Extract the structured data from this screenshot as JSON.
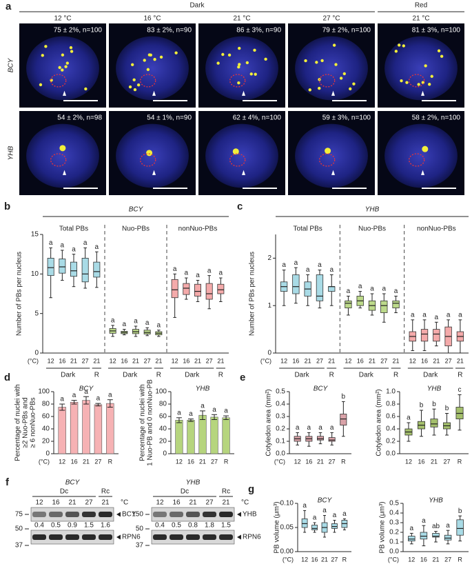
{
  "panel_a": {
    "label": "a",
    "headers": [
      "Dark",
      "Red"
    ],
    "temps": [
      "12 °C",
      "16 °C",
      "21 °C",
      "27 °C",
      "21 °C"
    ],
    "rows": [
      {
        "name": "BCY",
        "stats": [
          "75 ± 2%, n=100",
          "83 ± 2%, n=90",
          "86 ± 3%, n=90",
          "79 ± 2%, n=100",
          "81 ± 3%, n=100"
        ]
      },
      {
        "name": "YHB",
        "stats": [
          "54 ± 2%, n=98",
          "54 ± 1%, n=90",
          "62 ± 4%, n=100",
          "59 ± 3%, n=100",
          "58 ± 2%, n=100"
        ]
      }
    ]
  },
  "panel_f": {
    "label": "f",
    "blots": [
      {
        "name": "BCY",
        "dark": "Dc",
        "red": "Rc",
        "temps": [
          "12",
          "16",
          "21",
          "27",
          "21"
        ],
        "unit": "°C",
        "markers": [
          "75",
          "50",
          "37"
        ],
        "bands": [
          "BCY",
          "RPN6"
        ],
        "ratios": [
          "0.4",
          "0.5",
          "0.9",
          "1.5",
          "1.6"
        ]
      },
      {
        "name": "YHB",
        "dark": "Dc",
        "red": "Rc",
        "temps": [
          "12",
          "16",
          "21",
          "27",
          "21"
        ],
        "unit": "°C",
        "markers": [
          "150",
          "50",
          "37"
        ],
        "bands": [
          "YHB",
          "RPN6"
        ],
        "ratios": [
          "0.4",
          "0.5",
          "0.8",
          "1.8",
          "1.5"
        ]
      }
    ]
  },
  "chart_data": [
    {
      "type": "box",
      "panel": "b",
      "title": "BCY",
      "ylabel": [
        "Number of PBs per nucleus"
      ],
      "ylim": [
        0,
        15
      ],
      "yticks": [
        0,
        5,
        10,
        15
      ],
      "categories": [
        "12",
        "16",
        "21",
        "27",
        "21"
      ],
      "xunit": "(°C)",
      "under": [
        "Dark",
        "R"
      ],
      "series": [
        {
          "name": "Total PBs",
          "color": "#a9dbe6",
          "letters": [
            "a",
            "a",
            "a",
            "a",
            "a"
          ],
          "boxes": [
            {
              "min": 7,
              "q1": 9.8,
              "median": 10.8,
              "q3": 12,
              "max": 13.3
            },
            {
              "min": 9.2,
              "q1": 10.1,
              "median": 10.9,
              "q3": 11.9,
              "max": 13
            },
            {
              "min": 8.4,
              "q1": 9.7,
              "median": 10.4,
              "q3": 11.5,
              "max": 12.5
            },
            {
              "min": 8.2,
              "q1": 9,
              "median": 10,
              "q3": 12,
              "max": 13.3
            },
            {
              "min": 8.3,
              "q1": 9.6,
              "median": 10.3,
              "q3": 11.5,
              "max": 12.8
            }
          ]
        },
        {
          "name": "Nuo-PBs",
          "color": "#bcd98a",
          "letters": [
            "a",
            "a",
            "a",
            "a",
            "a"
          ],
          "boxes": [
            {
              "min": 2.1,
              "q1": 2.5,
              "median": 2.8,
              "q3": 3.1,
              "max": 3.5
            },
            {
              "min": 2.3,
              "q1": 2.45,
              "median": 2.6,
              "q3": 2.75,
              "max": 3
            },
            {
              "min": 2.1,
              "q1": 2.45,
              "median": 2.7,
              "q3": 3,
              "max": 3.4
            },
            {
              "min": 2.2,
              "q1": 2.4,
              "median": 2.6,
              "q3": 2.9,
              "max": 3.2
            },
            {
              "min": 2.1,
              "q1": 2.3,
              "median": 2.5,
              "q3": 2.7,
              "max": 2.9
            }
          ]
        },
        {
          "name": "nonNuo-PBs",
          "color": "#f4aaaa",
          "letters": [
            "a",
            "a",
            "a",
            "a",
            "a"
          ],
          "boxes": [
            {
              "min": 4.5,
              "q1": 7,
              "median": 8,
              "q3": 9.3,
              "max": 10
            },
            {
              "min": 6.8,
              "q1": 7.4,
              "median": 8.2,
              "q3": 8.8,
              "max": 9.5
            },
            {
              "min": 6.5,
              "q1": 7.2,
              "median": 7.8,
              "q3": 8.7,
              "max": 9.2
            },
            {
              "min": 5.6,
              "q1": 6.8,
              "median": 7.5,
              "q3": 8.8,
              "max": 9.8
            },
            {
              "min": 6.5,
              "q1": 7.5,
              "median": 8,
              "q3": 8.7,
              "max": 9.5
            }
          ]
        }
      ]
    },
    {
      "type": "box",
      "panel": "c",
      "title": "YHB",
      "ylabel": [
        "Number of PBs per nucleus"
      ],
      "ylim": [
        0,
        2.5
      ],
      "yticks": [
        0,
        1,
        2
      ],
      "categories": [
        "12",
        "16",
        "21",
        "27",
        "21"
      ],
      "xunit": "(°C)",
      "under": [
        "Dark",
        "R"
      ],
      "series": [
        {
          "name": "Total PBs",
          "color": "#a9dbe6",
          "letters": [
            "a",
            "a",
            "a",
            "a",
            "a"
          ],
          "boxes": [
            {
              "min": 1,
              "q1": 1.3,
              "median": 1.4,
              "q3": 1.5,
              "max": 1.75
            },
            {
              "min": 1.05,
              "q1": 1.25,
              "median": 1.4,
              "q3": 1.65,
              "max": 1.8
            },
            {
              "min": 1,
              "q1": 1.2,
              "median": 1.35,
              "q3": 1.5,
              "max": 1.65
            },
            {
              "min": 0.95,
              "q1": 1.1,
              "median": 1.2,
              "q3": 1.65,
              "max": 1.75
            },
            {
              "min": 1,
              "q1": 1.3,
              "median": 1.4,
              "q3": 1.4,
              "max": 1.65
            }
          ]
        },
        {
          "name": "Nuo-PBs",
          "color": "#bcd98a",
          "letters": [
            "a",
            "a",
            "a",
            "a",
            "a"
          ],
          "boxes": [
            {
              "min": 0.8,
              "q1": 0.95,
              "median": 1.05,
              "q3": 1.1,
              "max": 1.2
            },
            {
              "min": 0.95,
              "q1": 1,
              "median": 1.1,
              "q3": 1.2,
              "max": 1.3
            },
            {
              "min": 0.8,
              "q1": 0.9,
              "median": 1,
              "q3": 1.1,
              "max": 1.25
            },
            {
              "min": 0.65,
              "q1": 0.85,
              "median": 1,
              "q3": 1.1,
              "max": 1.25
            },
            {
              "min": 0.85,
              "q1": 0.95,
              "median": 1.05,
              "q3": 1.1,
              "max": 1.2
            }
          ]
        },
        {
          "name": "nonNuo-PBs",
          "color": "#f4aaaa",
          "letters": [
            "a",
            "a",
            "a",
            "a",
            "a"
          ],
          "boxes": [
            {
              "min": 0.05,
              "q1": 0.25,
              "median": 0.35,
              "q3": 0.45,
              "max": 0.7
            },
            {
              "min": 0.05,
              "q1": 0.25,
              "median": 0.4,
              "q3": 0.5,
              "max": 0.7
            },
            {
              "min": 0.15,
              "q1": 0.25,
              "median": 0.4,
              "q3": 0.5,
              "max": 0.65
            },
            {
              "min": 0,
              "q1": 0.15,
              "median": 0.35,
              "q3": 0.55,
              "max": 0.7
            },
            {
              "min": 0,
              "q1": 0.25,
              "median": 0.35,
              "q3": 0.45,
              "max": 0.7
            }
          ]
        }
      ]
    },
    {
      "type": "bar",
      "panel": "d",
      "title": "BCY",
      "ylabel": [
        "Percentage of nuclei with",
        "≥2 Nuo-PBs and",
        "≥ 6 nonNuo-PBs"
      ],
      "ylim": [
        0,
        100
      ],
      "yticks": [
        0,
        20,
        40,
        60,
        80,
        100
      ],
      "categories": [
        "12",
        "16",
        "21",
        "27",
        "R"
      ],
      "xunit": "(°C)",
      "color": "#f6b2b4",
      "values": [
        75,
        83,
        86,
        79,
        81
      ],
      "errors": [
        5,
        3,
        6,
        2,
        6
      ],
      "letters": [
        "a",
        "a",
        "a",
        "a",
        "a"
      ]
    },
    {
      "type": "bar",
      "title": "YHB",
      "ylabel": [
        "Percentage of nuclei with",
        "1 Nuo-PB and 0 nonNuo-PB"
      ],
      "ylim": [
        0,
        100
      ],
      "yticks": [
        0,
        20,
        40,
        60,
        80,
        100
      ],
      "categories": [
        "12",
        "16",
        "21",
        "27",
        "R"
      ],
      "color": "#b6d57e",
      "values": [
        54,
        54,
        62,
        59,
        58
      ],
      "errors": [
        4,
        2,
        7,
        4,
        3
      ],
      "letters": [
        "a",
        "a",
        "a",
        "a",
        "a"
      ]
    },
    {
      "type": "box",
      "panel": "e",
      "title": "BCY",
      "ylabel": [
        "Cotyledon area (mm²)"
      ],
      "ylim": [
        0,
        0.5
      ],
      "yticks": [
        {
          "value": 0,
          "label": "0.0"
        },
        0.1,
        0.2,
        0.3,
        0.4,
        0.5
      ],
      "categories": [
        "12",
        "16",
        "21",
        "27",
        "R"
      ],
      "xunit": "(°C)",
      "series": [
        {
          "color": "#d9a2a8",
          "letters": [
            "a",
            "a",
            "a",
            "a",
            "b"
          ],
          "boxes": [
            {
              "min": 0.07,
              "q1": 0.1,
              "median": 0.12,
              "q3": 0.14,
              "max": 0.17
            },
            {
              "min": 0.06,
              "q1": 0.1,
              "median": 0.12,
              "q3": 0.14,
              "max": 0.17
            },
            {
              "min": 0.08,
              "q1": 0.11,
              "median": 0.12,
              "q3": 0.14,
              "max": 0.17
            },
            {
              "min": 0.07,
              "q1": 0.1,
              "median": 0.11,
              "q3": 0.13,
              "max": 0.17
            },
            {
              "min": 0.14,
              "q1": 0.23,
              "median": 0.28,
              "q3": 0.32,
              "max": 0.42
            }
          ]
        }
      ]
    },
    {
      "type": "box",
      "title": "YHB",
      "ylabel": [
        "Cotyledon area (mm²)"
      ],
      "ylim": [
        0,
        1
      ],
      "yticks": [
        {
          "value": 0,
          "label": "0.0"
        },
        0.2,
        0.4,
        0.6,
        0.8,
        {
          "value": 1,
          "label": "1.0"
        }
      ],
      "categories": [
        "12",
        "16",
        "21",
        "27",
        "R"
      ],
      "series": [
        {
          "color": "#a4bf6c",
          "letters": [
            "a",
            "b",
            "b",
            "b",
            "c"
          ],
          "boxes": [
            {
              "min": 0.2,
              "q1": 0.3,
              "median": 0.35,
              "q3": 0.4,
              "max": 0.5
            },
            {
              "min": 0.28,
              "q1": 0.4,
              "median": 0.46,
              "q3": 0.52,
              "max": 0.7
            },
            {
              "min": 0.3,
              "q1": 0.43,
              "median": 0.48,
              "q3": 0.56,
              "max": 0.72
            },
            {
              "min": 0.3,
              "q1": 0.4,
              "median": 0.45,
              "q3": 0.5,
              "max": 0.65
            },
            {
              "min": 0.38,
              "q1": 0.56,
              "median": 0.65,
              "q3": 0.75,
              "max": 0.95
            }
          ]
        }
      ]
    },
    {
      "type": "box",
      "panel": "g",
      "title": "BCY",
      "ylabel": [
        "PB volume (μm³)"
      ],
      "ylim": [
        0,
        0.1
      ],
      "yticks": [
        {
          "value": 0,
          "label": "0.00"
        },
        0.05,
        {
          "value": 0.1,
          "label": "0.10"
        }
      ],
      "categories": [
        "12",
        "16",
        "21",
        "27",
        "R"
      ],
      "xunit": "(°C)",
      "series": [
        {
          "color": "#a9dbe6",
          "letters": [
            "a",
            "a",
            "a",
            "a",
            "a"
          ],
          "boxes": [
            {
              "min": 0.04,
              "q1": 0.05,
              "median": 0.058,
              "q3": 0.068,
              "max": 0.085
            },
            {
              "min": 0.04,
              "q1": 0.045,
              "median": 0.048,
              "q3": 0.055,
              "max": 0.06
            },
            {
              "min": 0.03,
              "q1": 0.04,
              "median": 0.05,
              "q3": 0.06,
              "max": 0.075
            },
            {
              "min": 0.04,
              "q1": 0.048,
              "median": 0.052,
              "q3": 0.058,
              "max": 0.065
            },
            {
              "min": 0.045,
              "q1": 0.05,
              "median": 0.058,
              "q3": 0.065,
              "max": 0.068
            }
          ]
        }
      ]
    },
    {
      "type": "box",
      "title": "YHB",
      "ylabel": [
        "PB volume (μm³)"
      ],
      "ylim": [
        0,
        0.5
      ],
      "yticks": [
        {
          "value": 0,
          "label": "0.0"
        },
        0.1,
        0.2,
        0.3,
        0.4,
        0.5
      ],
      "categories": [
        "12",
        "16",
        "21",
        "27",
        "R"
      ],
      "xunit": "(°C)",
      "series": [
        {
          "color": "#a9dbe6",
          "letters": [
            "a",
            "a",
            "ab",
            "a",
            "b"
          ],
          "boxes": [
            {
              "min": 0.08,
              "q1": 0.11,
              "median": 0.13,
              "q3": 0.16,
              "max": 0.19
            },
            {
              "min": 0.06,
              "q1": 0.13,
              "median": 0.16,
              "q3": 0.2,
              "max": 0.27
            },
            {
              "min": 0.1,
              "q1": 0.15,
              "median": 0.16,
              "q3": 0.19,
              "max": 0.21
            },
            {
              "min": 0.08,
              "q1": 0.12,
              "median": 0.14,
              "q3": 0.17,
              "max": 0.22
            },
            {
              "min": 0.11,
              "q1": 0.17,
              "median": 0.24,
              "q3": 0.33,
              "max": 0.37
            }
          ]
        }
      ]
    }
  ]
}
